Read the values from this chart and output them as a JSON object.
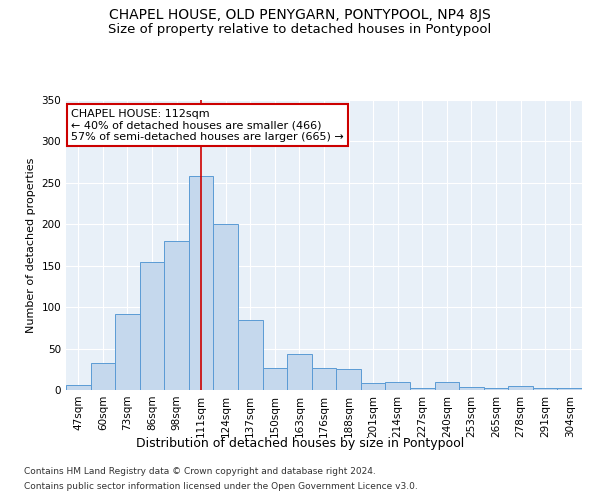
{
  "title": "CHAPEL HOUSE, OLD PENYGARN, PONTYPOOL, NP4 8JS",
  "subtitle": "Size of property relative to detached houses in Pontypool",
  "xlabel": "Distribution of detached houses by size in Pontypool",
  "ylabel": "Number of detached properties",
  "bins": [
    "47sqm",
    "60sqm",
    "73sqm",
    "86sqm",
    "98sqm",
    "111sqm",
    "124sqm",
    "137sqm",
    "150sqm",
    "163sqm",
    "176sqm",
    "188sqm",
    "201sqm",
    "214sqm",
    "227sqm",
    "240sqm",
    "253sqm",
    "265sqm",
    "278sqm",
    "291sqm",
    "304sqm"
  ],
  "values": [
    6,
    32,
    92,
    155,
    180,
    258,
    200,
    85,
    26,
    44,
    26,
    25,
    8,
    10,
    2,
    10,
    4,
    2,
    5,
    3,
    2
  ],
  "bar_color": "#c5d8ed",
  "bar_edge_color": "#5b9bd5",
  "vline_x": 5,
  "vline_color": "#cc0000",
  "annotation_title": "CHAPEL HOUSE: 112sqm",
  "annotation_line1": "← 40% of detached houses are smaller (466)",
  "annotation_line2": "57% of semi-detached houses are larger (665) →",
  "annotation_box_color": "#ffffff",
  "annotation_box_edge": "#cc0000",
  "ylim": [
    0,
    350
  ],
  "yticks": [
    0,
    50,
    100,
    150,
    200,
    250,
    300,
    350
  ],
  "background_color": "#e8f0f8",
  "footer_line1": "Contains HM Land Registry data © Crown copyright and database right 2024.",
  "footer_line2": "Contains public sector information licensed under the Open Government Licence v3.0.",
  "title_fontsize": 10,
  "subtitle_fontsize": 9.5,
  "xlabel_fontsize": 9,
  "ylabel_fontsize": 8,
  "tick_fontsize": 7.5,
  "annotation_fontsize": 8,
  "footer_fontsize": 6.5
}
